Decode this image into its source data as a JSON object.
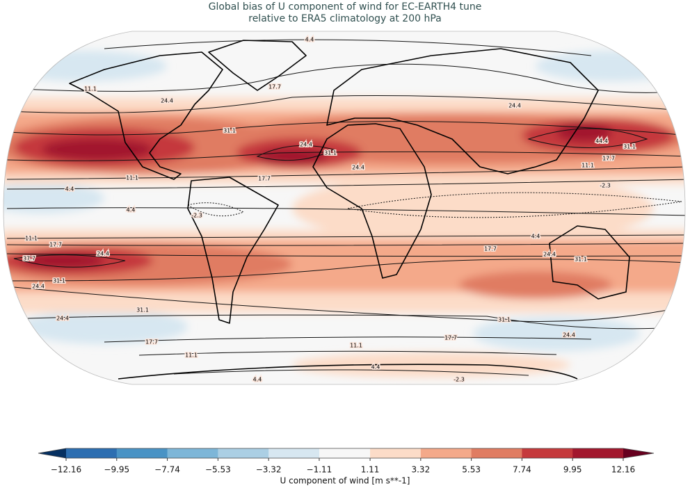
{
  "title_lines": [
    "Global bias of U component of wind for EC-EARTH4 tune",
    "relative to ERA5 climatology at 200 hPa"
  ],
  "colorbar": {
    "label": "U component of wind [m s**-1]",
    "ticks": [
      {
        "value": -12.16,
        "label": "−12.16"
      },
      {
        "value": -9.95,
        "label": "−9.95"
      },
      {
        "value": -7.74,
        "label": "−7.74"
      },
      {
        "value": -5.53,
        "label": "−5.53"
      },
      {
        "value": -3.32,
        "label": "−3.32"
      },
      {
        "value": -1.11,
        "label": "−1.11"
      },
      1.11,
      3.32,
      5.53,
      7.74,
      9.95,
      12.16
    ],
    "colors": [
      "#2c6eb1",
      "#4993c5",
      "#7db6d8",
      "#abcfe4",
      "#d7e7f1",
      "#f7f7f7",
      "#fcdcc8",
      "#f4a98a",
      "#e07c62",
      "#c5393c",
      "#a2172d"
    ],
    "under_color": "#053061",
    "over_color": "#67001f"
  },
  "contour_labels": [
    4.4,
    11.1,
    17.7,
    24.4,
    31.1,
    24.4,
    44.4,
    31.1,
    17.7,
    11.1,
    24.4,
    31.1,
    24.4,
    11.1,
    17.7,
    4.4,
    4.4,
    -2.3,
    -2.3,
    4.4,
    11.1,
    17.7,
    24.4,
    37.7,
    17.7,
    24.4,
    31.1,
    24.4,
    31.1,
    24.4,
    31.1,
    31.1,
    24.4,
    17.7,
    17.7,
    11.1,
    11.1,
    4.4,
    4.4,
    -2.3
  ]
}
